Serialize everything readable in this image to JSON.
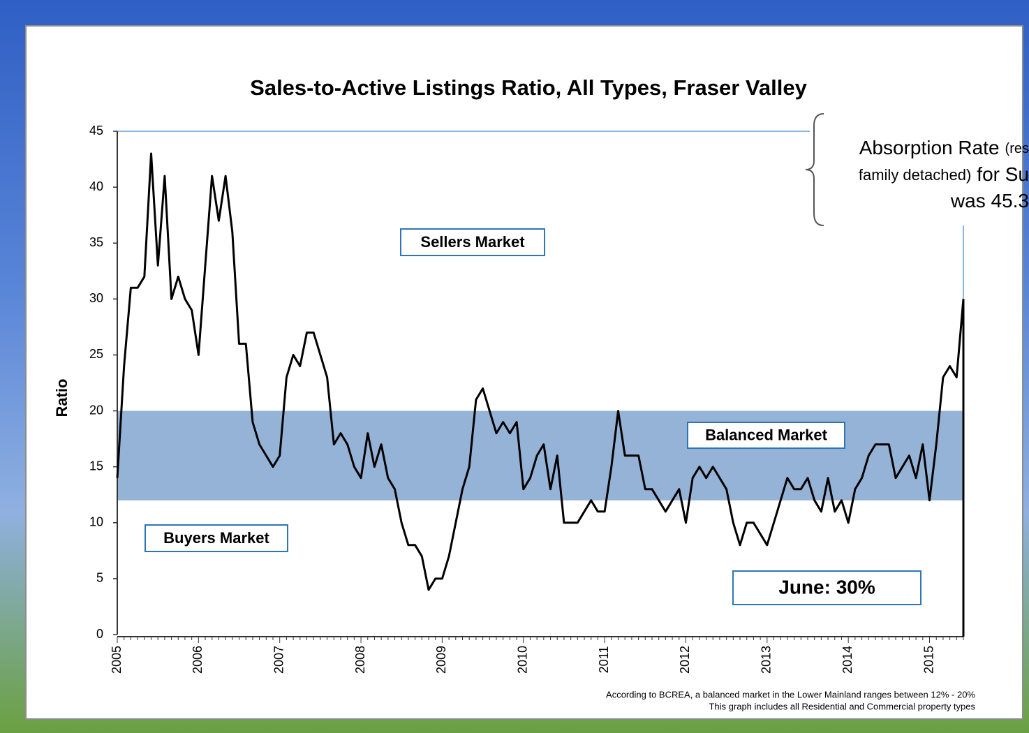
{
  "chart_data": {
    "type": "line",
    "title": "Sales-to-Active Listings Ratio, All Types, Fraser Valley",
    "y_label": "Ratio",
    "categories": [
      "2005",
      null,
      null,
      null,
      null,
      null,
      null,
      null,
      null,
      null,
      null,
      null,
      "2006",
      null,
      null,
      null,
      null,
      null,
      null,
      null,
      null,
      null,
      null,
      null,
      "2007",
      null,
      null,
      null,
      null,
      null,
      null,
      null,
      null,
      null,
      null,
      null,
      "2008",
      null,
      null,
      null,
      null,
      null,
      null,
      null,
      null,
      null,
      null,
      null,
      "2009",
      null,
      null,
      null,
      null,
      null,
      null,
      null,
      null,
      null,
      null,
      null,
      "2010",
      null,
      null,
      null,
      null,
      null,
      null,
      null,
      null,
      null,
      null,
      null,
      "2011",
      null,
      null,
      null,
      null,
      null,
      null,
      null,
      null,
      null,
      null,
      null,
      "2012",
      null,
      null,
      null,
      null,
      null,
      null,
      null,
      null,
      null,
      null,
      null,
      "2013",
      null,
      null,
      null,
      null,
      null,
      null,
      null,
      null,
      null,
      null,
      null,
      "2014",
      null,
      null,
      null,
      null,
      null,
      null,
      null,
      null,
      null,
      null,
      null,
      "2015",
      null,
      null,
      null,
      null,
      null
    ],
    "values": [
      14,
      24,
      31,
      31,
      32,
      43,
      33,
      41,
      30,
      32,
      30,
      29,
      25,
      33,
      41,
      37,
      41,
      36,
      26,
      26,
      19,
      17,
      16,
      15,
      16,
      23,
      25,
      24,
      27,
      27,
      25,
      23,
      17,
      18,
      17,
      15,
      14,
      18,
      15,
      17,
      14,
      13,
      10,
      8,
      8,
      7,
      4,
      5,
      5,
      7,
      10,
      13,
      15,
      21,
      22,
      20,
      18,
      19,
      18,
      19,
      13,
      14,
      16,
      17,
      13,
      16,
      10,
      10,
      10,
      11,
      12,
      11,
      11,
      15,
      20,
      16,
      16,
      16,
      13,
      13,
      12,
      11,
      12,
      13,
      10,
      14,
      15,
      14,
      15,
      14,
      13,
      10,
      8,
      10,
      10,
      9,
      8,
      10,
      12,
      14,
      13,
      13,
      14,
      12,
      11,
      14,
      11,
      12,
      10,
      13,
      14,
      16,
      17,
      17,
      17,
      14,
      15,
      16,
      14,
      17,
      12,
      17,
      23,
      24,
      23,
      30
    ],
    "color": "#000000",
    "ylim": [
      0,
      45
    ],
    "yticks": [
      0,
      5,
      10,
      15,
      20,
      25,
      30,
      35,
      40,
      45
    ],
    "balanced_band": [
      12,
      20
    ],
    "band_color": "#95b3d7",
    "annotations": [
      "Sellers Market",
      "Balanced Market",
      "Buyers Market",
      "June: 30%"
    ],
    "footnotes": [
      "According to BCREA, a balanced market in the Lower Mainland ranges between 12% - 20%",
      "This graph includes all Residential and Commercial property types"
    ],
    "callout": [
      "Absorption Rate",
      "(res",
      "family detached)",
      "for Su",
      "was 45.3"
    ]
  }
}
